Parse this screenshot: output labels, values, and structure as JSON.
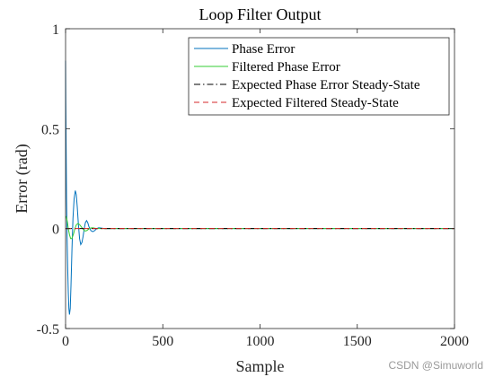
{
  "chart_data": {
    "type": "line",
    "title": "Loop Filter Output",
    "xlabel": "Sample",
    "ylabel": "Error (rad)",
    "xlim": [
      0,
      2000
    ],
    "ylim": [
      -0.5,
      1
    ],
    "xticks": [
      0,
      500,
      1000,
      1500,
      2000
    ],
    "xtick_labels": [
      "0",
      "500",
      "1000",
      "1500",
      "2000"
    ],
    "yticks": [
      -0.5,
      0,
      0.5,
      1
    ],
    "ytick_labels": [
      "-0.5",
      "0",
      "0.5",
      "1"
    ],
    "grid": false,
    "legend_position": "top-right",
    "series": [
      {
        "name": "Phase Error",
        "color": "#0072BD",
        "line_style": "solid",
        "x": [
          0,
          1,
          3,
          5,
          8,
          11,
          14,
          17,
          20,
          24,
          28,
          33,
          38,
          44,
          50,
          55,
          60,
          66,
          72,
          78,
          84,
          90,
          96,
          102,
          108,
          114,
          120,
          130,
          140,
          150,
          160,
          170,
          180,
          200,
          220,
          240,
          2000
        ],
        "y": [
          0.84,
          0.64,
          0.4,
          0.15,
          -0.05,
          -0.2,
          -0.32,
          -0.4,
          -0.43,
          -0.4,
          -0.28,
          -0.1,
          0.05,
          0.15,
          0.19,
          0.17,
          0.11,
          0.02,
          -0.05,
          -0.08,
          -0.07,
          -0.04,
          0.0,
          0.03,
          0.04,
          0.03,
          0.01,
          -0.01,
          -0.015,
          -0.01,
          0.0,
          0.004,
          0.003,
          0.0,
          0.0,
          0.0,
          0.0
        ]
      },
      {
        "name": "Filtered Phase Error",
        "color": "#33CC33",
        "line_style": "solid",
        "x": [
          0,
          3,
          6,
          10,
          14,
          20,
          26,
          32,
          40,
          48,
          56,
          64,
          72,
          80,
          88,
          96,
          104,
          112,
          120,
          130,
          140,
          150,
          160,
          180,
          200,
          220,
          2000
        ],
        "y": [
          0.06,
          0.06,
          0.05,
          0.03,
          0.0,
          -0.03,
          -0.05,
          -0.05,
          -0.03,
          0.0,
          0.02,
          0.025,
          0.02,
          0.01,
          0.0,
          -0.01,
          -0.012,
          -0.008,
          -0.002,
          0.003,
          0.004,
          0.002,
          0.0,
          0.0,
          0.0,
          0.0,
          0.0
        ]
      },
      {
        "name": "Expected Phase Error Steady-State",
        "color": "#000000",
        "line_style": "dashdot",
        "x": [
          0,
          2000
        ],
        "y": [
          0,
          0
        ]
      },
      {
        "name": "Expected Filtered Steady-State",
        "color": "#D62728",
        "line_style": "dashed",
        "x": [
          0,
          2000
        ],
        "y": [
          0,
          0
        ]
      }
    ]
  },
  "watermark": "CSDN @Simuworld"
}
